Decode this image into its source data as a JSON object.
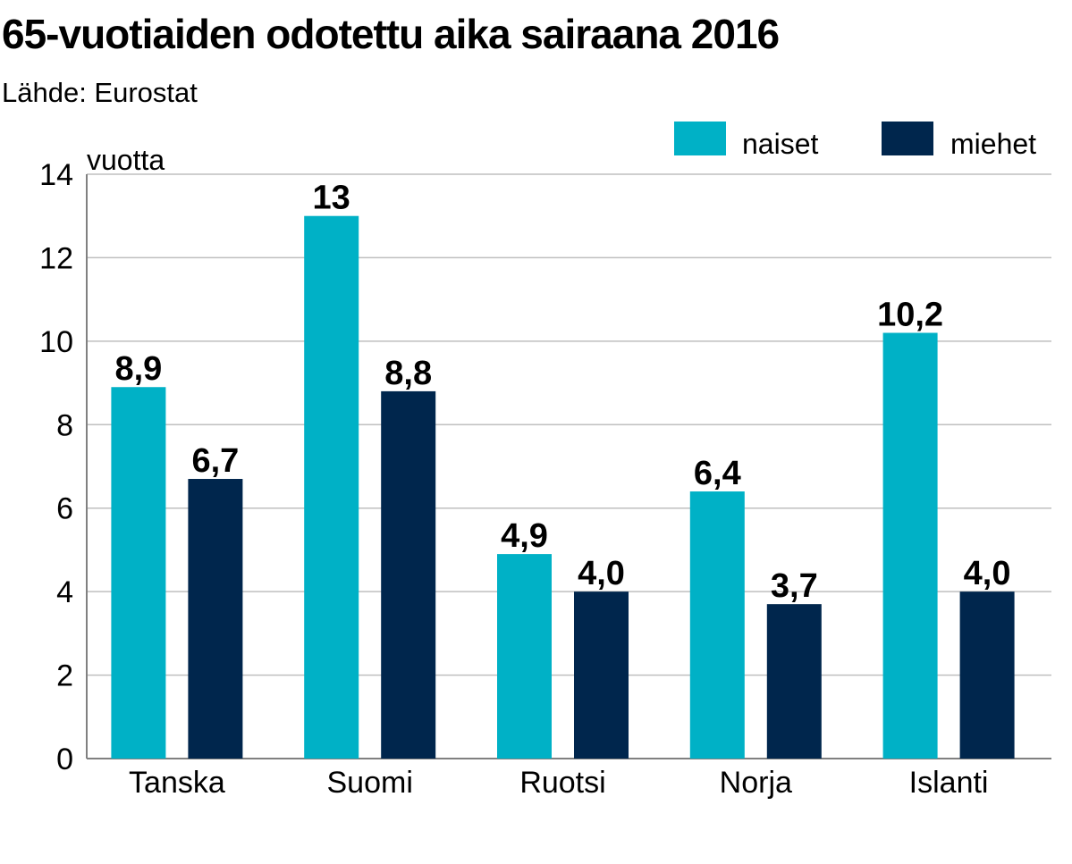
{
  "title": "65-vuotiaiden odotettu aika sairaana 2016",
  "subtitle": "Lähde: Eurostat",
  "colors": {
    "naiset": "#00b1c6",
    "miehet": "#00264d",
    "grid": "#bfbfbf",
    "axis": "#808080"
  },
  "chart_data": {
    "type": "bar",
    "title": "65-vuotiaiden odotettu aika sairaana 2016",
    "subtitle": "Lähde: Eurostat",
    "ylabel": "vuotta",
    "xlabel": "",
    "ylim": [
      0,
      14
    ],
    "yticks": [
      0,
      2,
      4,
      6,
      8,
      10,
      12,
      14
    ],
    "grid": true,
    "legend": "top-right",
    "categories": [
      "Tanska",
      "Suomi",
      "Ruotsi",
      "Norja",
      "Islanti"
    ],
    "series": [
      {
        "name": "naiset",
        "values": [
          8.9,
          13,
          4.9,
          6.4,
          10.2
        ],
        "labels": [
          "8,9",
          "13",
          "4,9",
          "6,4",
          "10,2"
        ]
      },
      {
        "name": "miehet",
        "values": [
          6.7,
          8.8,
          4.0,
          3.7,
          4.0
        ],
        "labels": [
          "6,7",
          "8,8",
          "4,0",
          "3,7",
          "4,0"
        ]
      }
    ]
  }
}
